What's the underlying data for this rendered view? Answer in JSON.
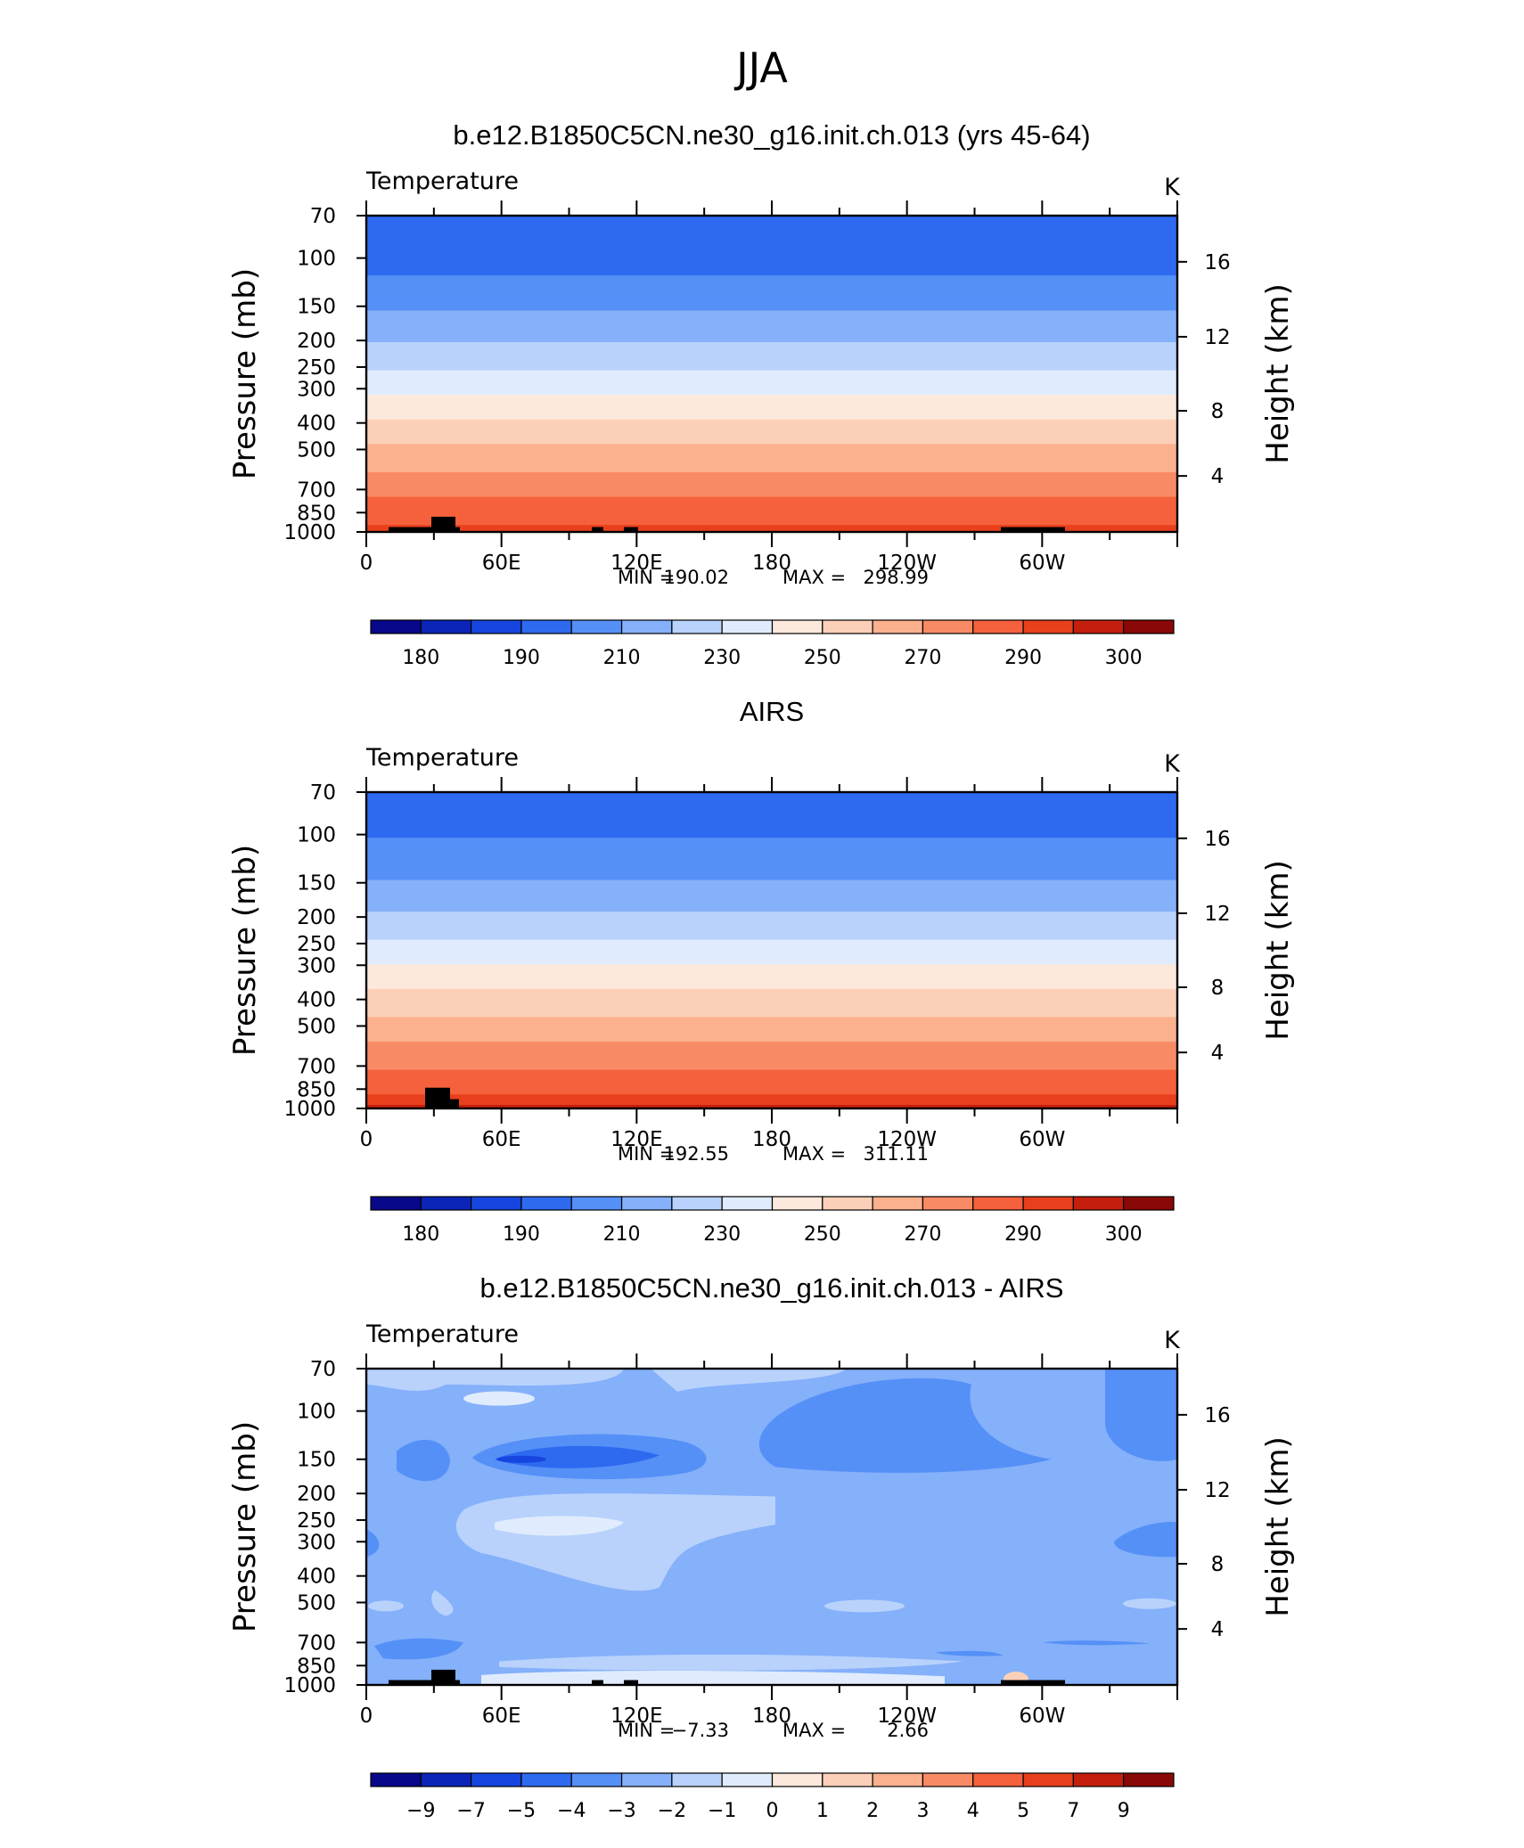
{
  "figure_title": "JJA",
  "units_label": "K",
  "variable_label": "Temperature",
  "left_axis_label": "Pressure  (mb)",
  "right_axis_label": "Height  (km)",
  "pressure_ticks": [
    "70",
    "100",
    "150",
    "200",
    "250",
    "300",
    "400",
    "500",
    "700",
    "850",
    "1000"
  ],
  "height_ticks": [
    "16",
    "12",
    "8",
    "4"
  ],
  "lon_ticks": [
    "0",
    "60E",
    "120E",
    "180",
    "120W",
    "60W"
  ],
  "panels": [
    {
      "title": "b.e12.B1850C5CN.ne30_g16.init.ch.013 (yrs 45-64)",
      "min_label": "MIN  =",
      "min_value": "190.02",
      "max_label": "MAX  =",
      "max_value": "298.99",
      "colorbar_labels": [
        "180",
        "190",
        "210",
        "230",
        "250",
        "270",
        "290",
        "300"
      ]
    },
    {
      "title": "AIRS",
      "min_label": "MIN  =",
      "min_value": "192.55",
      "max_label": "MAX  =",
      "max_value": "311.11",
      "colorbar_labels": [
        "180",
        "190",
        "210",
        "230",
        "250",
        "270",
        "290",
        "300"
      ]
    },
    {
      "title": "b.e12.B1850C5CN.ne30_g16.init.ch.013 - AIRS",
      "min_label": "MIN  =",
      "min_value": "−7.33",
      "max_label": "MAX  =",
      "max_value": "2.66",
      "colorbar_labels": [
        "−9",
        "−7",
        "−5",
        "−4",
        "−3",
        "−2",
        "−1",
        "0",
        "1",
        "2",
        "3",
        "4",
        "5",
        "7",
        "9"
      ]
    }
  ],
  "colors": {
    "palette": [
      "#08088a",
      "#0a25b8",
      "#1646df",
      "#2e6af0",
      "#5590f7",
      "#85b0fa",
      "#b8d2fc",
      "#e0ecfd",
      "#fde9dc",
      "#fcd0b8",
      "#fbb08e",
      "#f88b65",
      "#f4613c",
      "#e8401c",
      "#c41f0e",
      "#8a0808"
    ],
    "topography": "#000000"
  },
  "chart_data": [
    {
      "type": "heatmap",
      "title": "b.e12.B1850C5CN.ne30_g16.init.ch.013 (yrs 45-64)",
      "subtitle": "Temperature",
      "units": "K",
      "ylabel": "Pressure  (mb)",
      "y2label": "Height  (km)",
      "x_ticks": [
        "0",
        "60E",
        "120E",
        "180",
        "120W",
        "60W"
      ],
      "y_ticks_mb": [
        70,
        100,
        150,
        200,
        250,
        300,
        400,
        500,
        700,
        850,
        1000
      ],
      "y2_ticks_km": [
        16,
        12,
        8,
        4
      ],
      "ylim_mb": [
        1000,
        70
      ],
      "min": 190.02,
      "max": 298.99,
      "contour_levels": [
        180,
        185,
        190,
        200,
        210,
        220,
        230,
        240,
        250,
        260,
        270,
        280,
        290,
        295,
        300
      ],
      "zonal_profile": [
        {
          "p": 1000,
          "T": 295
        },
        {
          "p": 925,
          "T": 289
        },
        {
          "p": 850,
          "T": 285
        },
        {
          "p": 700,
          "T": 277
        },
        {
          "p": 600,
          "T": 270
        },
        {
          "p": 500,
          "T": 262
        },
        {
          "p": 400,
          "T": 252
        },
        {
          "p": 300,
          "T": 238
        },
        {
          "p": 250,
          "T": 229
        },
        {
          "p": 200,
          "T": 220
        },
        {
          "p": 150,
          "T": 208
        },
        {
          "p": 100,
          "T": 196
        },
        {
          "p": 70,
          "T": 194
        }
      ]
    },
    {
      "type": "heatmap",
      "title": "AIRS",
      "subtitle": "Temperature",
      "units": "K",
      "ylabel": "Pressure  (mb)",
      "y2label": "Height  (km)",
      "x_ticks": [
        "0",
        "60E",
        "120E",
        "180",
        "120W",
        "60W"
      ],
      "y_ticks_mb": [
        70,
        100,
        150,
        200,
        250,
        300,
        400,
        500,
        700,
        850,
        1000
      ],
      "y2_ticks_km": [
        16,
        12,
        8,
        4
      ],
      "ylim_mb": [
        1000,
        70
      ],
      "min": 192.55,
      "max": 311.11,
      "contour_levels": [
        180,
        185,
        190,
        200,
        210,
        220,
        230,
        240,
        250,
        260,
        270,
        280,
        290,
        295,
        300
      ],
      "zonal_profile": [
        {
          "p": 1000,
          "T": 298
        },
        {
          "p": 925,
          "T": 292
        },
        {
          "p": 850,
          "T": 287
        },
        {
          "p": 700,
          "T": 279
        },
        {
          "p": 600,
          "T": 272
        },
        {
          "p": 500,
          "T": 264
        },
        {
          "p": 400,
          "T": 254
        },
        {
          "p": 300,
          "T": 241
        },
        {
          "p": 250,
          "T": 232
        },
        {
          "p": 200,
          "T": 222
        },
        {
          "p": 150,
          "T": 211
        },
        {
          "p": 100,
          "T": 199
        },
        {
          "p": 70,
          "T": 197
        }
      ]
    },
    {
      "type": "heatmap",
      "title": "b.e12.B1850C5CN.ne30_g16.init.ch.013 - AIRS",
      "subtitle": "Temperature",
      "units": "K",
      "ylabel": "Pressure  (mb)",
      "y2label": "Height  (km)",
      "x_ticks": [
        "0",
        "60E",
        "120E",
        "180",
        "120W",
        "60W"
      ],
      "y_ticks_mb": [
        70,
        100,
        150,
        200,
        250,
        300,
        400,
        500,
        700,
        850,
        1000
      ],
      "y2_ticks_km": [
        16,
        12,
        8,
        4
      ],
      "ylim_mb": [
        1000,
        70
      ],
      "min": -7.33,
      "max": 2.66,
      "contour_levels": [
        -9,
        -7,
        -5,
        -4,
        -3,
        -2,
        -1,
        0,
        1,
        2,
        3,
        4,
        5,
        7,
        9
      ],
      "dominant_range": [
        -3,
        -2
      ]
    }
  ]
}
